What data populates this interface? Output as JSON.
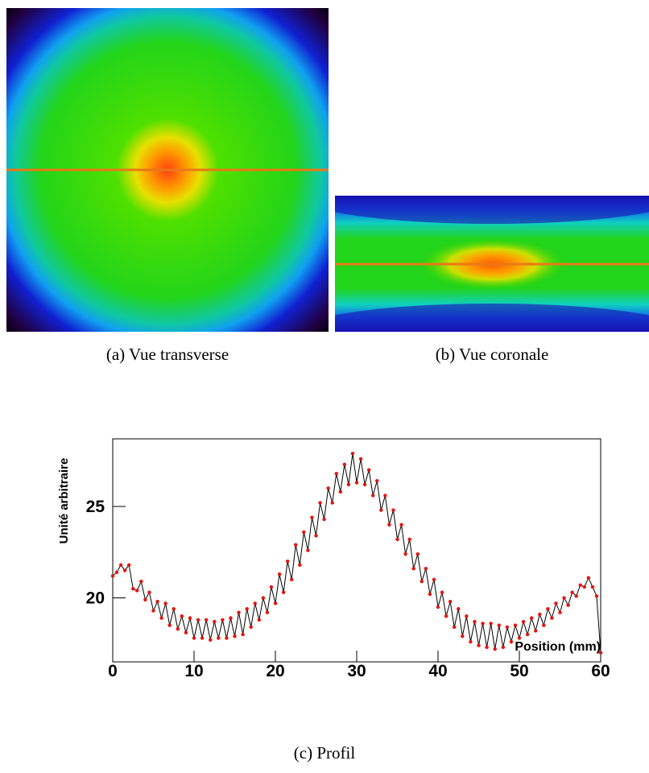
{
  "captions": [
    "(a) Vue transverse",
    "(b) Vue coronale",
    "(c) Profil"
  ],
  "chart_data": {
    "type": "line",
    "xlabel": "Position (mm)",
    "ylabel": "Unité arbitraire",
    "xlim": [
      0,
      60
    ],
    "ylim": [
      16.5,
      28.7
    ],
    "xticks": [
      0,
      10,
      20,
      30,
      40,
      50,
      60
    ],
    "yticks": [
      20,
      25
    ],
    "x": [
      0,
      0.5,
      1,
      1.5,
      2,
      2.5,
      3,
      3.5,
      4,
      4.5,
      5,
      5.5,
      6,
      6.5,
      7,
      7.5,
      8,
      8.5,
      9,
      9.5,
      10,
      10.5,
      11,
      11.5,
      12,
      12.5,
      13,
      13.5,
      14,
      14.5,
      15,
      15.5,
      16,
      16.5,
      17,
      17.5,
      18,
      18.5,
      19,
      19.5,
      20,
      20.5,
      21,
      21.5,
      22,
      22.5,
      23,
      23.5,
      24,
      24.5,
      25,
      25.5,
      26,
      26.5,
      27,
      27.5,
      28,
      28.5,
      29,
      29.5,
      30,
      30.5,
      31,
      31.5,
      32,
      32.5,
      33,
      33.5,
      34,
      34.5,
      35,
      35.5,
      36,
      36.5,
      37,
      37.5,
      38,
      38.5,
      39,
      39.5,
      40,
      40.5,
      41,
      41.5,
      42,
      42.5,
      43,
      43.5,
      44,
      44.5,
      45,
      45.5,
      46,
      46.5,
      47,
      47.5,
      48,
      48.5,
      49,
      49.5,
      50,
      50.5,
      51,
      51.5,
      52,
      52.5,
      53,
      53.5,
      54,
      54.5,
      55,
      55.5,
      56,
      56.5,
      57,
      57.5,
      58,
      58.5,
      59,
      59.5,
      60
    ],
    "series": [
      {
        "line_color": "#000000",
        "color": "#e8120c",
        "values": [
          21.2,
          21.4,
          21.8,
          21.5,
          21.8,
          20.5,
          20.4,
          20.9,
          19.9,
          20.3,
          19.3,
          19.8,
          18.9,
          19.7,
          18.5,
          19.4,
          18.3,
          19.0,
          18.1,
          18.9,
          17.8,
          18.8,
          17.8,
          18.8,
          17.7,
          18.7,
          17.8,
          18.8,
          17.8,
          18.9,
          17.9,
          19.2,
          18.0,
          19.4,
          18.4,
          19.7,
          18.8,
          20.0,
          19.2,
          20.6,
          19.7,
          21.3,
          20.3,
          22.0,
          21.0,
          22.9,
          21.8,
          23.6,
          22.6,
          24.4,
          23.4,
          25.2,
          24.3,
          26.0,
          25.2,
          26.8,
          25.8,
          27.3,
          26.2,
          27.9,
          26.3,
          27.6,
          26.2,
          27.0,
          25.6,
          26.4,
          24.8,
          25.6,
          24.0,
          24.8,
          23.2,
          24.0,
          22.4,
          23.2,
          21.6,
          22.4,
          20.9,
          21.6,
          20.2,
          21.0,
          19.5,
          20.3,
          19.0,
          19.8,
          18.4,
          19.4,
          17.9,
          19.0,
          17.6,
          18.7,
          17.4,
          18.6,
          17.3,
          18.6,
          17.2,
          18.5,
          17.3,
          18.4,
          17.6,
          18.5,
          17.8,
          18.7,
          18.0,
          18.9,
          18.2,
          19.1,
          18.5,
          19.4,
          18.9,
          19.7,
          19.2,
          20.0,
          19.6,
          20.3,
          20.1,
          20.7,
          20.6,
          21.1,
          20.6,
          20.1,
          17.0
        ]
      }
    ]
  }
}
